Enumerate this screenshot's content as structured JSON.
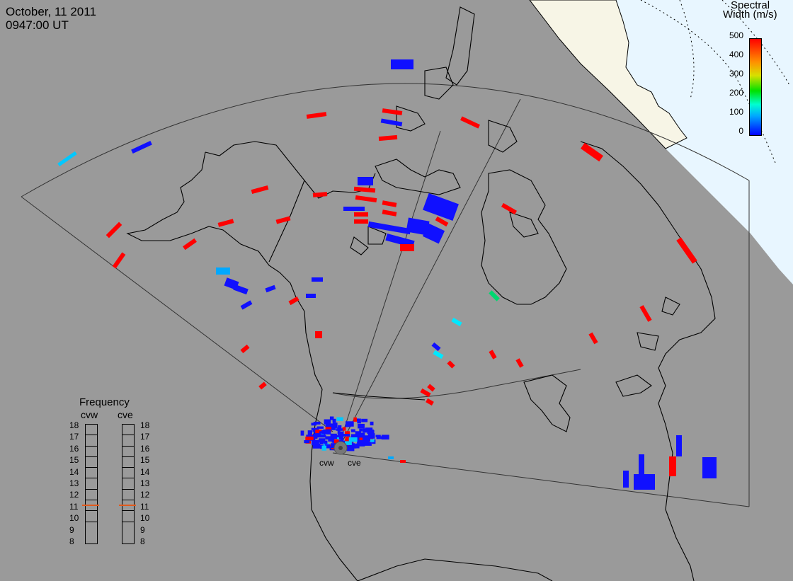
{
  "header": {
    "date": "October, 11 2011",
    "time": "0947:00 UT"
  },
  "colorbar": {
    "title_line1": "Spectral",
    "title_line2": "Width (m/s)",
    "ticks": [
      "500",
      "400",
      "300",
      "200",
      "100",
      "0"
    ],
    "colors": [
      "#0000ff",
      "#00a8ff",
      "#00ffd0",
      "#00e000",
      "#d8e000",
      "#ff9000",
      "#ff0000"
    ]
  },
  "frequency_panel": {
    "title": "Frequency",
    "radars": [
      "cvw",
      "cve"
    ],
    "scale_labels": [
      "18",
      "17",
      "16",
      "15",
      "14",
      "13",
      "12",
      "11",
      "10",
      "9",
      "8"
    ],
    "cvw_mhz": 11,
    "cve_mhz": 11
  },
  "radar_sites": {
    "west": "cvw",
    "east": "cve"
  },
  "colors": {
    "background": "#9a9a9a",
    "daylight": "#e8f6ff",
    "land_daylight": "#f7f5e6",
    "high_width": "#ff0000",
    "low_width": "#1010ff",
    "frequency_marker": "#e25a1c"
  }
}
